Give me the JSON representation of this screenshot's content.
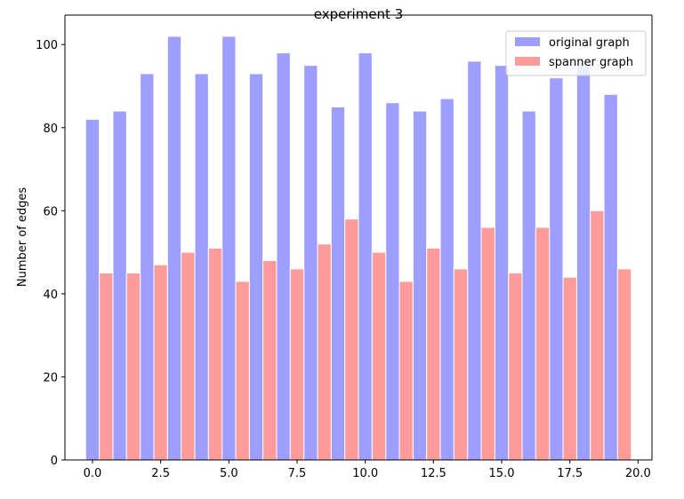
{
  "chart_data": {
    "type": "bar",
    "title": "experiment 3",
    "xlabel": "",
    "ylabel": "Number of edges",
    "x": [
      0,
      1,
      2,
      3,
      4,
      5,
      6,
      7,
      8,
      9,
      10,
      11,
      12,
      13,
      14,
      15,
      16,
      17,
      18,
      19
    ],
    "bar_width": 0.5,
    "series": [
      {
        "name": "original graph",
        "color": "#9e9efe",
        "offset": 0,
        "values": [
          82,
          84,
          93,
          102,
          93,
          102,
          93,
          98,
          95,
          85,
          98,
          86,
          84,
          87,
          96,
          95,
          84,
          92,
          95,
          88
        ]
      },
      {
        "name": "spanner graph",
        "color": "#fe9b9b",
        "offset": 0.5,
        "values": [
          45,
          45,
          47,
          50,
          51,
          43,
          48,
          46,
          52,
          58,
          50,
          43,
          51,
          46,
          56,
          45,
          56,
          44,
          60,
          46
        ]
      }
    ],
    "xlim": [
      -1.01,
      20.51
    ],
    "ylim": [
      0,
      107.1
    ],
    "xticks": [
      0.0,
      2.5,
      5.0,
      7.5,
      10.0,
      12.5,
      15.0,
      17.5,
      20.0
    ],
    "xtick_labels": [
      "0.0",
      "2.5",
      "5.0",
      "7.5",
      "10.0",
      "12.5",
      "15.0",
      "17.5",
      "20.0"
    ],
    "yticks": [
      0,
      20,
      40,
      60,
      80,
      100
    ],
    "ytick_labels": [
      "0",
      "20",
      "40",
      "60",
      "80",
      "100"
    ],
    "legend": "top-right",
    "grid": false
  }
}
